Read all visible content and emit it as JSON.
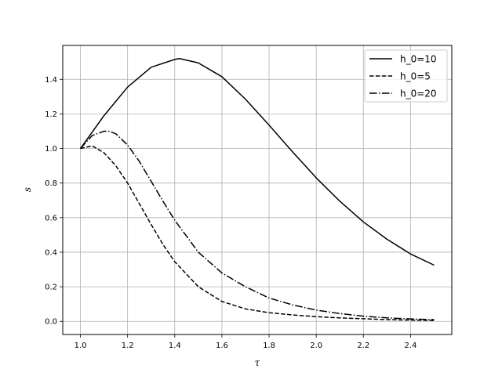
{
  "chart_data": {
    "type": "line",
    "title": "",
    "xlabel": "τ",
    "ylabel": "s",
    "xlim": [
      0.925,
      2.575
    ],
    "ylim": [
      -0.076,
      1.596
    ],
    "xticks": [
      1.0,
      1.2,
      1.4,
      1.6,
      1.8,
      2.0,
      2.2,
      2.4
    ],
    "yticks": [
      0.0,
      0.2,
      0.4,
      0.6,
      0.8,
      1.0,
      1.2,
      1.4
    ],
    "grid": true,
    "legend_position": "upper-right",
    "series": [
      {
        "name": "h_0=10",
        "style": "solid",
        "color": "#000000",
        "x": [
          1.0,
          1.1,
          1.2,
          1.3,
          1.4,
          1.42,
          1.5,
          1.6,
          1.7,
          1.8,
          1.9,
          2.0,
          2.1,
          2.2,
          2.3,
          2.4,
          2.5
        ],
        "y": [
          1.0,
          1.19,
          1.355,
          1.47,
          1.515,
          1.52,
          1.495,
          1.415,
          1.285,
          1.135,
          0.98,
          0.83,
          0.695,
          0.575,
          0.475,
          0.39,
          0.325
        ]
      },
      {
        "name": "h_0=5",
        "style": "dashed",
        "color": "#000000",
        "x": [
          1.0,
          1.05,
          1.1,
          1.15,
          1.2,
          1.25,
          1.3,
          1.35,
          1.4,
          1.5,
          1.6,
          1.7,
          1.8,
          1.9,
          2.0,
          2.1,
          2.2,
          2.3,
          2.4,
          2.5
        ],
        "y": [
          1.0,
          1.015,
          0.975,
          0.9,
          0.8,
          0.68,
          0.56,
          0.445,
          0.345,
          0.2,
          0.115,
          0.072,
          0.05,
          0.037,
          0.027,
          0.02,
          0.015,
          0.01,
          0.007,
          0.005
        ]
      },
      {
        "name": "h_0=20",
        "style": "dashdot",
        "color": "#000000",
        "x": [
          1.0,
          1.05,
          1.1,
          1.12,
          1.15,
          1.2,
          1.25,
          1.3,
          1.35,
          1.4,
          1.5,
          1.6,
          1.7,
          1.8,
          1.9,
          2.0,
          2.1,
          2.2,
          2.3,
          2.4,
          2.5
        ],
        "y": [
          1.0,
          1.075,
          1.1,
          1.1,
          1.085,
          1.02,
          0.925,
          0.81,
          0.695,
          0.585,
          0.4,
          0.28,
          0.2,
          0.135,
          0.095,
          0.065,
          0.045,
          0.03,
          0.02,
          0.014,
          0.01
        ]
      }
    ]
  }
}
